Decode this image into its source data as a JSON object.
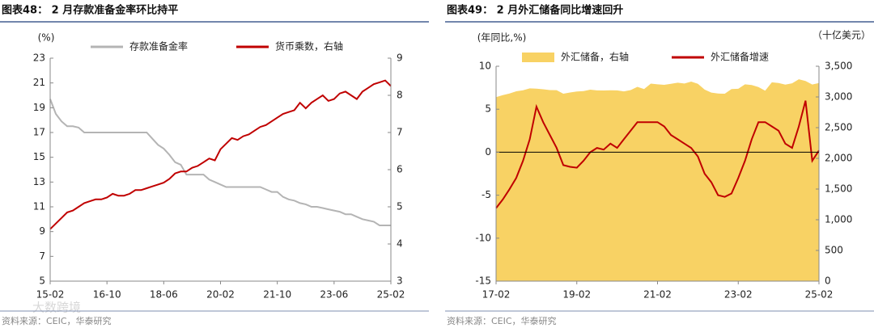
{
  "chart_data": [
    {
      "type": "line",
      "title": "图表48：  2 月存款准备金率环比持平",
      "source": "资料来源：CEIC，华泰研究",
      "ylabel": "(%)",
      "categories": [
        "15-02",
        null,
        null,
        null,
        null,
        null,
        null,
        null,
        null,
        null,
        "16-10",
        null,
        null,
        null,
        null,
        null,
        null,
        null,
        null,
        null,
        "18-06",
        null,
        null,
        null,
        null,
        null,
        null,
        null,
        null,
        null,
        "20-02",
        null,
        null,
        null,
        null,
        null,
        null,
        null,
        null,
        null,
        "21-10",
        null,
        null,
        null,
        null,
        null,
        null,
        null,
        null,
        null,
        "23-06",
        null,
        null,
        null,
        null,
        null,
        null,
        null,
        null,
        null,
        "25-02"
      ],
      "ylim": [
        5,
        23
      ],
      "yticks": [
        5,
        7,
        9,
        11,
        13,
        15,
        17,
        19,
        21,
        23
      ],
      "y2lim": [
        3,
        9
      ],
      "y2ticks": [
        3,
        4,
        5,
        6,
        7,
        8,
        9
      ],
      "series": [
        {
          "name": "存款准备金率",
          "color": "#b4b4b4",
          "values": [
            19.7,
            18.5,
            17.9,
            17.5,
            17.5,
            17.4,
            17.0,
            17.0,
            17.0,
            17.0,
            17.0,
            17.0,
            17.0,
            17.0,
            17.0,
            17.0,
            17.0,
            17.0,
            16.5,
            16.0,
            15.7,
            15.2,
            14.6,
            14.4,
            13.6,
            13.6,
            13.6,
            13.6,
            13.2,
            13.0,
            12.8,
            12.6,
            12.6,
            12.6,
            12.6,
            12.6,
            12.6,
            12.6,
            12.4,
            12.2,
            12.2,
            11.8,
            11.6,
            11.5,
            11.3,
            11.2,
            11.0,
            11.0,
            10.9,
            10.8,
            10.7,
            10.6,
            10.4,
            10.4,
            10.2,
            10.0,
            9.9,
            9.8,
            9.5,
            9.5,
            9.5
          ]
        },
        {
          "name": "货币乘数，右轴",
          "color": "#c00000",
          "axis": "y2",
          "values": [
            4.4,
            4.55,
            4.7,
            4.85,
            4.9,
            5.0,
            5.1,
            5.15,
            5.2,
            5.2,
            5.25,
            5.35,
            5.3,
            5.3,
            5.35,
            5.45,
            5.45,
            5.5,
            5.55,
            5.6,
            5.65,
            5.75,
            5.9,
            5.95,
            5.95,
            6.05,
            6.1,
            6.2,
            6.3,
            6.25,
            6.55,
            6.7,
            6.85,
            6.8,
            6.9,
            6.95,
            7.05,
            7.15,
            7.2,
            7.3,
            7.4,
            7.5,
            7.55,
            7.6,
            7.8,
            7.65,
            7.8,
            7.9,
            8.0,
            7.85,
            7.9,
            8.05,
            8.1,
            8.0,
            7.9,
            8.1,
            8.2,
            8.3,
            8.35,
            8.4,
            8.25
          ]
        }
      ]
    },
    {
      "type": "line",
      "title": "图表49：  2 月外汇储备同比增速回升",
      "source": "资料来源：CEIC，华泰研究",
      "ylabel": "(年同比,%)",
      "y2label": "（十亿美元）",
      "zero_line": true,
      "categories": [
        "17-02",
        null,
        null,
        null,
        null,
        null,
        null,
        null,
        null,
        null,
        null,
        null,
        "19-02",
        null,
        null,
        null,
        null,
        null,
        null,
        null,
        null,
        null,
        null,
        null,
        "21-02",
        null,
        null,
        null,
        null,
        null,
        null,
        null,
        null,
        null,
        null,
        null,
        "23-02",
        null,
        null,
        null,
        null,
        null,
        null,
        null,
        null,
        null,
        null,
        null,
        "25-02"
      ],
      "ylim": [
        -15,
        10
      ],
      "yticks": [
        -15,
        -10,
        -5,
        0,
        5,
        10
      ],
      "y2lim": [
        0,
        3500
      ],
      "y2ticks": [
        0,
        500,
        {
          "value": 1000,
          "label": "1,000"
        },
        {
          "value": 1500,
          "label": "1,500"
        },
        {
          "value": 2000,
          "label": "2,000"
        },
        {
          "value": 2500,
          "label": "2,500"
        },
        {
          "value": 3000,
          "label": "3,000"
        },
        {
          "value": 3500,
          "label": "3,500"
        }
      ],
      "series": [
        {
          "name": "外汇储备，右轴",
          "color": "#f8d264",
          "style": "area",
          "axis": "y2",
          "values": [
            2998,
            3030,
            3057,
            3092,
            3109,
            3140,
            3134,
            3125,
            3112,
            3110,
            3053,
            3073,
            3090,
            3095,
            3119,
            3107,
            3105,
            3108,
            3107,
            3091,
            3112,
            3165,
            3128,
            3217,
            3205,
            3198,
            3214,
            3232,
            3218,
            3250,
            3214,
            3120,
            3071,
            3055,
            3052,
            3128,
            3133,
            3205,
            3193,
            3160,
            3101,
            3238,
            3226,
            3201,
            3222,
            3288,
            3261,
            3202,
            3227
          ]
        },
        {
          "name": "外汇储备增速",
          "color": "#c00000",
          "values": [
            -6.5,
            -5.5,
            -4.3,
            -3,
            -1,
            1.5,
            5.3,
            3.5,
            2,
            0.5,
            -1.5,
            -1.7,
            -1.8,
            -1,
            0,
            0.5,
            0.3,
            1,
            0.5,
            1.5,
            2.5,
            3.5,
            3.5,
            3.5,
            3.5,
            3,
            2,
            1.5,
            1,
            0.5,
            -0.5,
            -2.5,
            -3.5,
            -5,
            -5.2,
            -4.8,
            -3,
            -1,
            1.5,
            3.5,
            3.5,
            3,
            2.5,
            1,
            0.5,
            3,
            6,
            -1,
            0.2
          ]
        }
      ]
    }
  ],
  "watermark": "大数跨境"
}
